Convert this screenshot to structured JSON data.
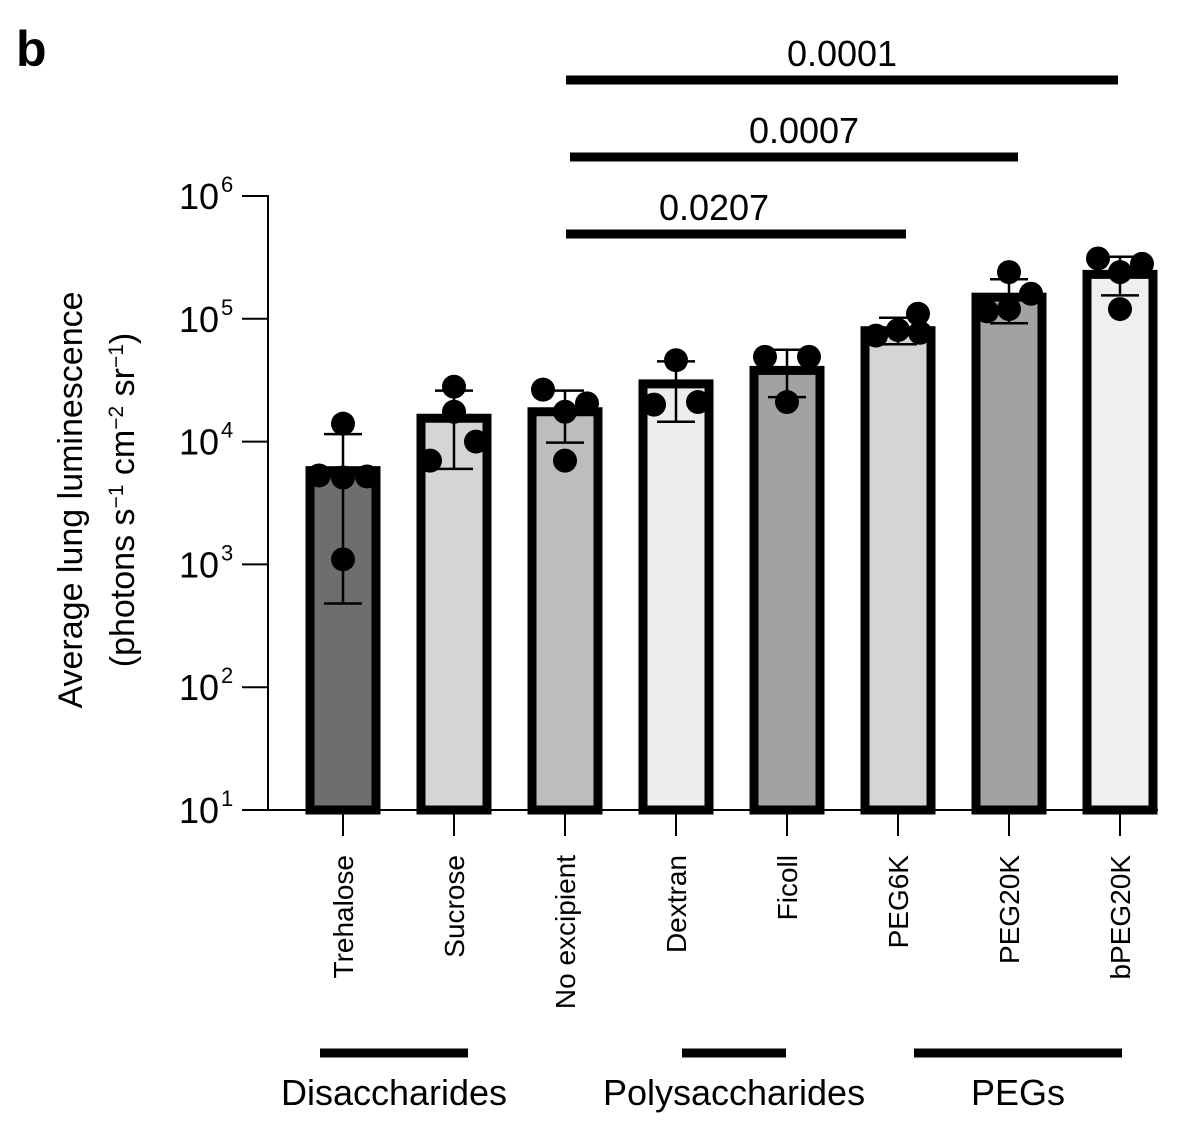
{
  "panel_label": "b",
  "chart_data": {
    "type": "bar",
    "yscale": "log",
    "ylim": [
      10,
      1000000
    ],
    "yticks": [
      {
        "value": 10,
        "base": "10",
        "exp": "1"
      },
      {
        "value": 100,
        "base": "10",
        "exp": "2"
      },
      {
        "value": 1000,
        "base": "10",
        "exp": "3"
      },
      {
        "value": 10000,
        "base": "10",
        "exp": "4"
      },
      {
        "value": 100000,
        "base": "10",
        "exp": "5"
      },
      {
        "value": 1000000,
        "base": "10",
        "exp": "6"
      }
    ],
    "ylabel_line1": "Average lung luminescence",
    "ylabel_line2_parts": [
      "(photons s",
      "−1",
      " cm",
      "−2",
      " sr",
      "−1",
      ")"
    ],
    "categories": [
      "Trehalose",
      "Sucrose",
      "No excipient",
      "Dextran",
      "Ficoll",
      "PEG6K",
      "PEG20K",
      "bPEG20K"
    ],
    "bars": [
      {
        "category": "Trehalose",
        "mean": 5800,
        "err_low": 480,
        "err_high": 11500,
        "points": [
          5300,
          5200,
          5100,
          14000,
          1100
        ],
        "color": "#6e6e6e"
      },
      {
        "category": "Sucrose",
        "mean": 15500,
        "err_low": 6000,
        "err_high": 26000,
        "points": [
          28000,
          17500,
          10000,
          7000
        ],
        "color": "#d4d5d7"
      },
      {
        "category": "No excipient",
        "mean": 17500,
        "err_low": 9800,
        "err_high": 26000,
        "points": [
          26500,
          17500,
          20500,
          7000
        ],
        "color": "#bcbdbf"
      },
      {
        "category": "Dextran",
        "mean": 29500,
        "err_low": 14500,
        "err_high": 45000,
        "points": [
          46000,
          20000,
          21000
        ],
        "color": "#ededed"
      },
      {
        "category": "Ficoll",
        "mean": 38000,
        "err_low": 23000,
        "err_high": 56000,
        "points": [
          49000,
          49000,
          21000
        ],
        "color": "#a2a2a2"
      },
      {
        "category": "PEG6K",
        "mean": 80000,
        "err_low": 62000,
        "err_high": 102000,
        "points": [
          73000,
          81000,
          77000,
          110000
        ],
        "color": "#d4d5d7"
      },
      {
        "category": "PEG20K",
        "mean": 150000,
        "err_low": 92000,
        "err_high": 210000,
        "points": [
          240000,
          115000,
          160000,
          120000
        ],
        "color": "#a2a2a2"
      },
      {
        "category": "bPEG20K",
        "mean": 230000,
        "err_low": 155000,
        "err_high": 320000,
        "points": [
          310000,
          280000,
          240000,
          120000
        ],
        "color": "#efefef"
      }
    ],
    "significance": [
      {
        "from": "No excipient",
        "to": "bPEG20K",
        "label": "0.0001"
      },
      {
        "from": "No excipient",
        "to": "PEG20K",
        "label": "0.0007"
      },
      {
        "from": "No excipient",
        "to": "PEG6K",
        "label": "0.0207"
      }
    ],
    "groups": [
      {
        "label": "Disaccharides",
        "from": "Trehalose",
        "to": "Sucrose"
      },
      {
        "label": "Polysaccharides",
        "from": "Dextran",
        "to": "Ficoll"
      },
      {
        "label": "PEGs",
        "from": "PEG6K",
        "to": "bPEG20K"
      }
    ],
    "grid": false,
    "legend": "none"
  }
}
